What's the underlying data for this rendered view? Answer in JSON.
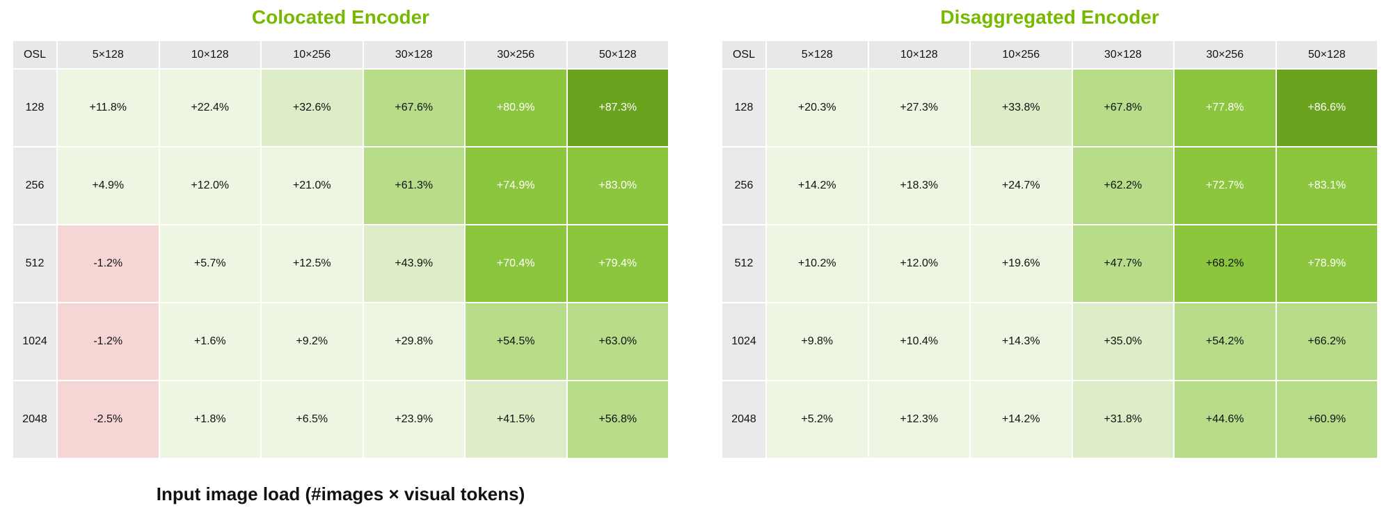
{
  "chart_data": [
    {
      "type": "heatmap",
      "title": "Colocated Encoder",
      "corner_label": "OSL",
      "columns": [
        "5×128",
        "10×128",
        "10×256",
        "30×128",
        "30×256",
        "50×128"
      ],
      "rows": [
        "128",
        "256",
        "512",
        "1024",
        "2048"
      ],
      "values": [
        [
          11.8,
          22.4,
          32.6,
          67.6,
          80.9,
          87.3
        ],
        [
          4.9,
          12.0,
          21.0,
          61.3,
          74.9,
          83.0
        ],
        [
          -1.2,
          5.7,
          12.5,
          43.9,
          70.4,
          79.4
        ],
        [
          -1.2,
          1.6,
          9.2,
          29.8,
          54.5,
          63.0
        ],
        [
          -2.5,
          1.8,
          6.5,
          23.9,
          41.5,
          56.8
        ]
      ],
      "labels": [
        [
          "+11.8%",
          "+22.4%",
          "+32.6%",
          "+67.6%",
          "+80.9%",
          "+87.3%"
        ],
        [
          "+4.9%",
          "+12.0%",
          "+21.0%",
          "+61.3%",
          "+74.9%",
          "+83.0%"
        ],
        [
          "-1.2%",
          "+5.7%",
          "+12.5%",
          "+43.9%",
          "+70.4%",
          "+79.4%"
        ],
        [
          "-1.2%",
          "+1.6%",
          "+9.2%",
          "+29.8%",
          "+54.5%",
          "+63.0%"
        ],
        [
          "-2.5%",
          "+1.8%",
          "+6.5%",
          "+23.9%",
          "+41.5%",
          "+56.8%"
        ]
      ],
      "xlabel": "Input image load (#images × visual tokens)"
    },
    {
      "type": "heatmap",
      "title": "Disaggregated Encoder",
      "corner_label": "OSL",
      "columns": [
        "5×128",
        "10×128",
        "10×256",
        "30×128",
        "30×256",
        "50×128"
      ],
      "rows": [
        "128",
        "256",
        "512",
        "1024",
        "2048"
      ],
      "values": [
        [
          20.3,
          27.3,
          33.8,
          67.8,
          77.8,
          86.6
        ],
        [
          14.2,
          18.3,
          24.7,
          62.2,
          72.7,
          83.1
        ],
        [
          10.2,
          12.0,
          19.6,
          47.7,
          68.2,
          78.9
        ],
        [
          9.8,
          10.4,
          14.3,
          35.0,
          54.2,
          66.2
        ],
        [
          5.2,
          12.3,
          14.2,
          31.8,
          44.6,
          60.9
        ]
      ],
      "labels": [
        [
          "+20.3%",
          "+27.3%",
          "+33.8%",
          "+67.8%",
          "+77.8%",
          "+86.6%"
        ],
        [
          "+14.2%",
          "+18.3%",
          "+24.7%",
          "+62.2%",
          "+72.7%",
          "+83.1%"
        ],
        [
          "+10.2%",
          "+12.0%",
          "+19.6%",
          "+47.7%",
          "+68.2%",
          "+78.9%"
        ],
        [
          "+9.8%",
          "+10.4%",
          "+14.3%",
          "+35.0%",
          "+54.2%",
          "+66.2%"
        ],
        [
          "+5.2%",
          "+12.3%",
          "+14.2%",
          "+31.8%",
          "+44.6%",
          "+60.9%"
        ]
      ]
    }
  ],
  "colors": {
    "title": "#76b900",
    "negative": "#f6d5d5",
    "scale": [
      "#edf6e3",
      "#dcedc8",
      "#b7dd8a",
      "#8cc63f",
      "#6aa31e"
    ],
    "header_bg": "#e8e8e8"
  }
}
